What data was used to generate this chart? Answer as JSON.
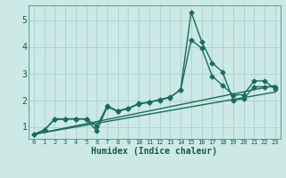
{
  "title": "",
  "xlabel": "Humidex (Indice chaleur)",
  "ylabel": "",
  "bg_color": "#cce9e6",
  "grid_color": "#aed4d0",
  "line_color": "#1a6b60",
  "xlim": [
    -0.5,
    23.5
  ],
  "ylim": [
    0.55,
    5.55
  ],
  "yticks": [
    1,
    2,
    3,
    4,
    5
  ],
  "xticks": [
    0,
    1,
    2,
    3,
    4,
    5,
    6,
    7,
    8,
    9,
    10,
    11,
    12,
    13,
    14,
    15,
    16,
    17,
    18,
    19,
    20,
    21,
    22,
    23
  ],
  "series": [
    {
      "x": [
        0,
        1,
        2,
        3,
        4,
        5,
        6,
        7,
        8,
        9,
        10,
        11,
        12,
        13,
        14,
        15,
        16,
        17,
        18,
        19,
        20,
        21,
        22,
        23
      ],
      "y": [
        0.72,
        0.88,
        1.28,
        1.28,
        1.3,
        1.28,
        0.85,
        1.75,
        1.58,
        1.68,
        1.85,
        1.92,
        2.0,
        2.1,
        2.4,
        5.3,
        4.2,
        3.4,
        3.05,
        2.0,
        2.05,
        2.5,
        2.5,
        2.5
      ],
      "marker": "D",
      "markersize": 2.5,
      "linewidth": 1.0
    },
    {
      "x": [
        0,
        1,
        2,
        3,
        4,
        5,
        6,
        7,
        8,
        9,
        10,
        11,
        12,
        13,
        14,
        15,
        16,
        17,
        18,
        19,
        20,
        21,
        22,
        23
      ],
      "y": [
        0.72,
        0.88,
        1.3,
        1.3,
        1.3,
        1.3,
        1.02,
        1.78,
        1.6,
        1.7,
        1.87,
        1.93,
        2.02,
        2.12,
        2.38,
        4.25,
        3.95,
        2.9,
        2.55,
        2.2,
        2.2,
        2.72,
        2.72,
        2.42
      ],
      "marker": "D",
      "markersize": 2.5,
      "linewidth": 1.0
    },
    {
      "x": [
        0,
        23
      ],
      "y": [
        0.72,
        2.55
      ],
      "marker": null,
      "markersize": 0,
      "linewidth": 1.0
    },
    {
      "x": [
        0,
        23
      ],
      "y": [
        0.72,
        2.3
      ],
      "marker": null,
      "markersize": 0,
      "linewidth": 1.0
    }
  ]
}
